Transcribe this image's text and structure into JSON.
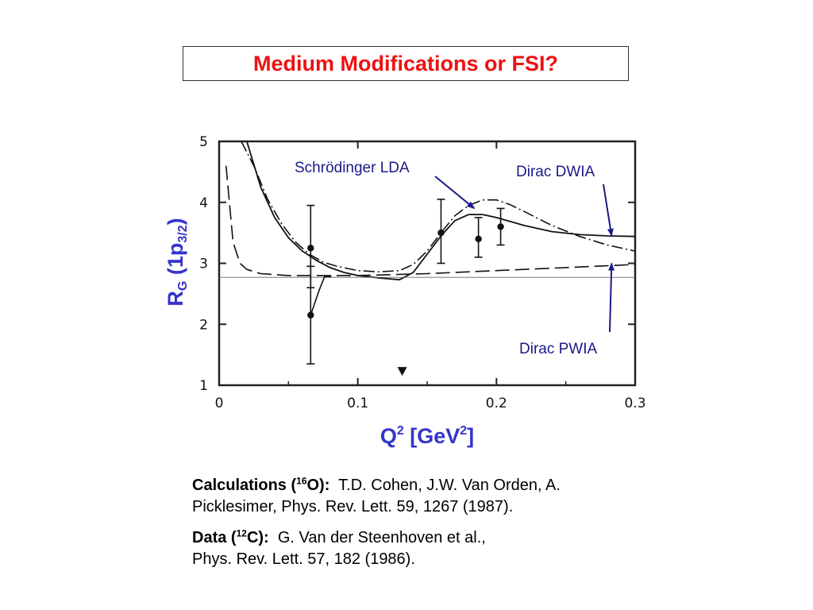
{
  "title": "Medium Modifications or FSI?",
  "chart_data": {
    "type": "line",
    "xlabel": {
      "main": "Q",
      "sup1": "2",
      "unit_open": " [GeV",
      "sup2": "2",
      "unit_close": "]"
    },
    "ylabel": {
      "main": "R",
      "sub1": "G",
      "mid": "  (1p",
      "sub2": "3/2",
      "close": ")"
    },
    "xlim": [
      0,
      0.3
    ],
    "ylim": [
      1,
      5
    ],
    "x_ticks": [
      "0",
      "0.1",
      "0.2",
      "0.3"
    ],
    "x_tick_values": [
      0,
      0.1,
      0.2,
      0.3
    ],
    "y_ticks": [
      "1",
      "2",
      "3",
      "4",
      "5"
    ],
    "y_tick_values": [
      1,
      2,
      3,
      4,
      5
    ],
    "series": [
      {
        "name": "Schrödinger LDA",
        "style": "dash-dot",
        "x": [
          0.016,
          0.025,
          0.035,
          0.045,
          0.055,
          0.065,
          0.075,
          0.085,
          0.1,
          0.115,
          0.13,
          0.14,
          0.15,
          0.16,
          0.17,
          0.18,
          0.19,
          0.2,
          0.21,
          0.22,
          0.24,
          0.26,
          0.28,
          0.3
        ],
        "y": [
          5.0,
          4.6,
          4.05,
          3.65,
          3.35,
          3.15,
          3.02,
          2.95,
          2.88,
          2.86,
          2.88,
          2.98,
          3.2,
          3.5,
          3.78,
          3.95,
          4.04,
          4.04,
          3.96,
          3.85,
          3.62,
          3.44,
          3.3,
          3.2
        ]
      },
      {
        "name": "Dirac DWIA",
        "style": "solid",
        "x": [
          0.02,
          0.03,
          0.04,
          0.05,
          0.06,
          0.07,
          0.08,
          0.09,
          0.1,
          0.115,
          0.13,
          0.14,
          0.15,
          0.16,
          0.17,
          0.18,
          0.19,
          0.2,
          0.22,
          0.24,
          0.26,
          0.28,
          0.3
        ],
        "y": [
          5.0,
          4.25,
          3.75,
          3.42,
          3.2,
          3.05,
          2.93,
          2.85,
          2.8,
          2.76,
          2.73,
          2.85,
          3.15,
          3.45,
          3.7,
          3.8,
          3.8,
          3.75,
          3.62,
          3.52,
          3.47,
          3.45,
          3.44
        ]
      },
      {
        "name": "Dirac PWIA",
        "style": "long-dash",
        "x": [
          0.005,
          0.01,
          0.015,
          0.02,
          0.03,
          0.05,
          0.1,
          0.15,
          0.2,
          0.25,
          0.3
        ],
        "y": [
          4.6,
          3.35,
          3.0,
          2.9,
          2.83,
          2.8,
          2.8,
          2.83,
          2.88,
          2.93,
          2.98
        ]
      },
      {
        "name": "",
        "style": "thin-solid",
        "x": [
          0,
          0.3
        ],
        "y": [
          2.77,
          2.77
        ]
      }
    ],
    "data_points": [
      {
        "x": 0.066,
        "y": 3.25,
        "err_low": 2.6,
        "err_high": 3.95
      },
      {
        "x": 0.066,
        "y": 2.15,
        "err_low": 1.35,
        "err_high": 2.95
      },
      {
        "x": 0.16,
        "y": 3.5,
        "err_low": 3.0,
        "err_high": 4.05
      },
      {
        "x": 0.187,
        "y": 3.4,
        "err_low": 3.1,
        "err_high": 3.75
      },
      {
        "x": 0.203,
        "y": 3.6,
        "err_low": 3.3,
        "err_high": 3.9
      }
    ],
    "data_connector": {
      "x": [
        0.066,
        0.072,
        0.076,
        0.081
      ],
      "y": [
        2.15,
        2.55,
        2.78,
        2.78
      ]
    },
    "marker": {
      "x": 0.132,
      "y": 1.22,
      "shape": "down-triangle"
    },
    "annotations": [
      {
        "text": "Schrödinger LDA",
        "arrow_to": [
          0.184,
          3.9
        ]
      },
      {
        "text": "Dirac DWIA",
        "arrow_to": [
          0.283,
          3.45
        ]
      },
      {
        "text": "Dirac PWIA",
        "arrow_to": [
          0.283,
          3.0
        ]
      }
    ],
    "grid": false
  },
  "references": [
    {
      "label_pre": "Calculations (",
      "label_sup": "16",
      "label_post": "O):",
      "line1": "T.D. Cohen, J.W. Van Orden, A.",
      "line2": "Picklesimer, Phys. Rev. Lett. 59, 1267 (1987)."
    },
    {
      "label_pre": "Data (",
      "label_sup": "12",
      "label_post": "C):",
      "line1": "G. Van der Steenhoven et al.,",
      "line2": "Phys. Rev. Lett. 57, 182 (1986)."
    }
  ]
}
